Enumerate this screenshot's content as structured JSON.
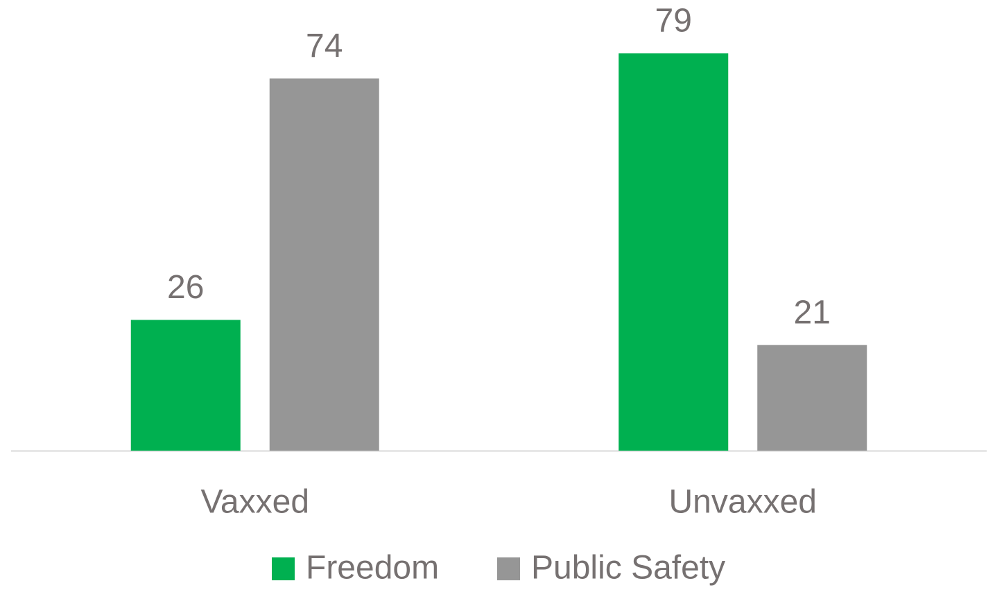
{
  "chart_data": {
    "type": "bar",
    "categories": [
      "Vaxxed",
      "Unvaxxed"
    ],
    "series": [
      {
        "name": "Freedom",
        "color": "#00b050",
        "values": [
          26,
          79
        ]
      },
      {
        "name": "Public Safety",
        "color": "#969696",
        "values": [
          74,
          21
        ]
      }
    ],
    "legend": "bottom"
  }
}
